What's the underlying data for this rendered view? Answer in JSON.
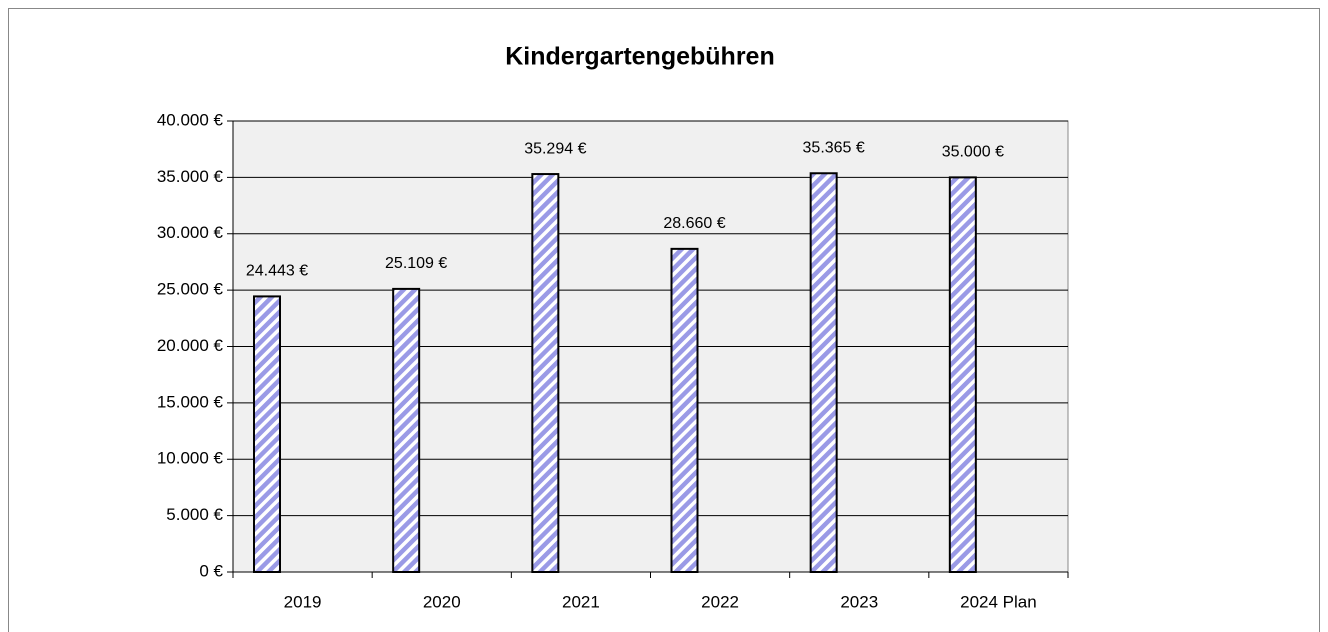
{
  "chart_data": {
    "type": "bar",
    "title": "Kindergartengebühren",
    "categories": [
      "2019",
      "2020",
      "2021",
      "2022",
      "2023",
      "2024 Plan"
    ],
    "values": [
      24443,
      25109,
      35294,
      28660,
      35365,
      35000
    ],
    "value_labels": [
      "24.443 €",
      "25.109 €",
      "35.294 €",
      "28.660 €",
      "35.365 €",
      "35.000 €"
    ],
    "color": "#9a9ae6",
    "ylim": [
      0,
      40000
    ],
    "yticks": [
      {
        "value": 0,
        "label": "0 €"
      },
      {
        "value": 5000,
        "label": "5.000 €"
      },
      {
        "value": 10000,
        "label": "10.000 €"
      },
      {
        "value": 15000,
        "label": "15.000 €"
      },
      {
        "value": 20000,
        "label": "20.000 €"
      },
      {
        "value": 25000,
        "label": "25.000 €"
      },
      {
        "value": 30000,
        "label": "30.000 €"
      },
      {
        "value": 35000,
        "label": "35.000 €"
      },
      {
        "value": 40000,
        "label": "40.000 €"
      }
    ],
    "grid": true
  }
}
